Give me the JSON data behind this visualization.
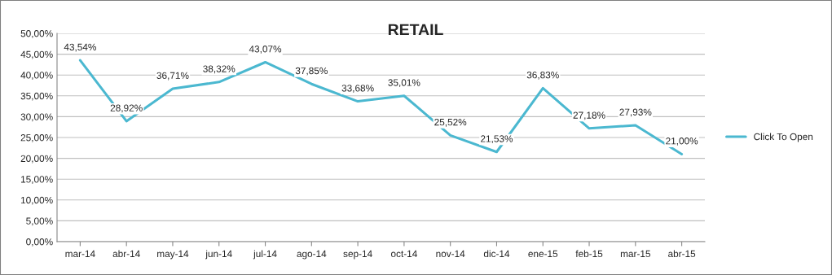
{
  "chart_data": {
    "type": "line",
    "title": "RETAIL",
    "categories": [
      "mar-14",
      "abr-14",
      "may-14",
      "jun-14",
      "jul-14",
      "ago-14",
      "sep-14",
      "oct-14",
      "nov-14",
      "dic-14",
      "ene-15",
      "feb-15",
      "mar-15",
      "abr-15"
    ],
    "series": [
      {
        "name": "Click To Open",
        "color": "#4bb8d0",
        "values": [
          43.54,
          28.92,
          36.71,
          38.32,
          43.07,
          37.85,
          33.68,
          35.01,
          25.52,
          21.53,
          36.83,
          27.18,
          27.93,
          21.0
        ],
        "value_labels": [
          "43,54%",
          "28,92%",
          "36,71%",
          "38,32%",
          "43,07%",
          "37,85%",
          "33,68%",
          "35,01%",
          "25,52%",
          "21,53%",
          "36,83%",
          "27,18%",
          "27,93%",
          "21,00%"
        ]
      }
    ],
    "ylim": [
      0,
      50
    ],
    "yticks": [
      {
        "value": 0,
        "label": "0,00%"
      },
      {
        "value": 5,
        "label": "5,00%"
      },
      {
        "value": 10,
        "label": "10,00%"
      },
      {
        "value": 15,
        "label": "15,00%"
      },
      {
        "value": 20,
        "label": "20,00%"
      },
      {
        "value": 25,
        "label": "25,00%"
      },
      {
        "value": 30,
        "label": "30,00%"
      },
      {
        "value": 35,
        "label": "35,00%"
      },
      {
        "value": 40,
        "label": "40,00%"
      },
      {
        "value": 45,
        "label": "45,00%"
      },
      {
        "value": 50,
        "label": "50,00%"
      }
    ],
    "grid": "y",
    "legend": "right",
    "marker": "none",
    "line_style": "solid"
  }
}
